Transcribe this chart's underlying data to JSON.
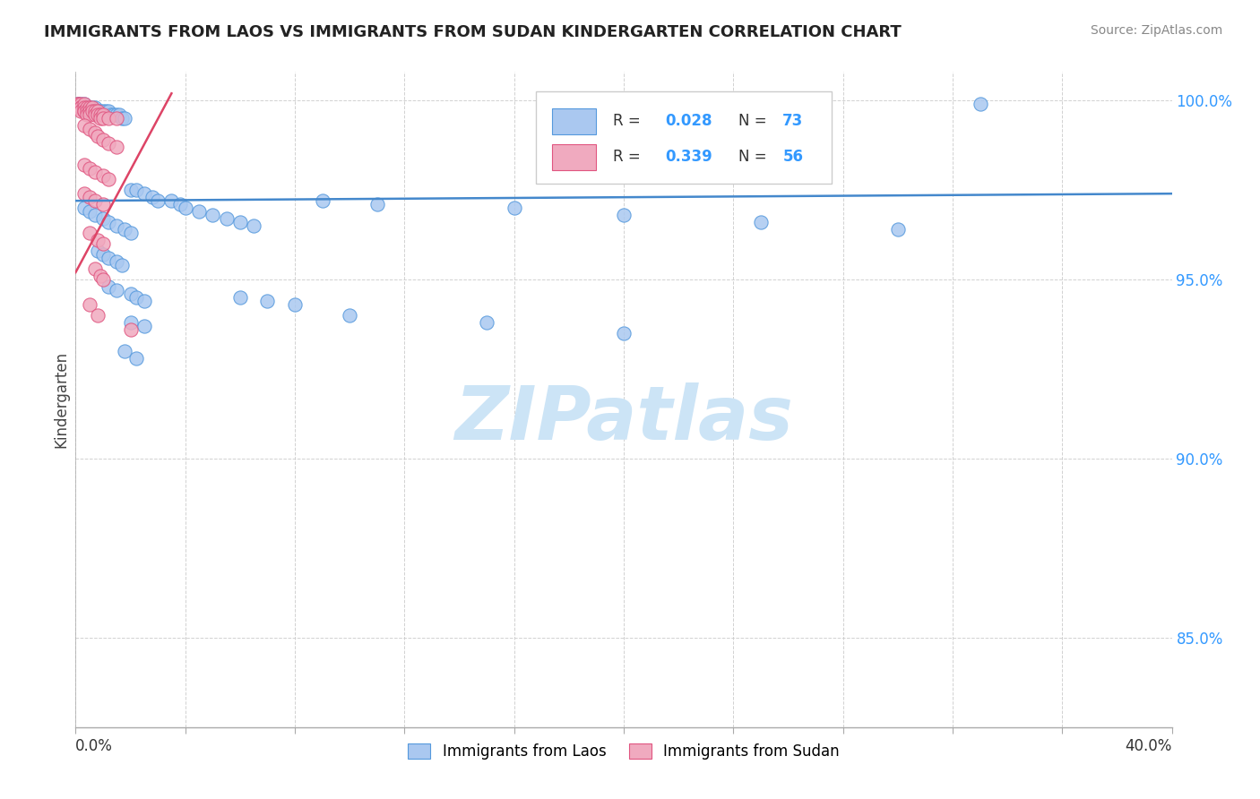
{
  "title": "IMMIGRANTS FROM LAOS VS IMMIGRANTS FROM SUDAN KINDERGARTEN CORRELATION CHART",
  "source": "Source: ZipAtlas.com",
  "ylabel": "Kindergarten",
  "xmin": 0.0,
  "xmax": 0.4,
  "ymin": 0.825,
  "ymax": 1.008,
  "yticks": [
    0.85,
    0.9,
    0.95,
    1.0
  ],
  "ytick_labels": [
    "85.0%",
    "90.0%",
    "95.0%",
    "100.0%"
  ],
  "laos_color": "#aac8f0",
  "sudan_color": "#f0aabf",
  "laos_edge_color": "#5599dd",
  "sudan_edge_color": "#e05580",
  "laos_line_color": "#4488cc",
  "sudan_line_color": "#dd4466",
  "background_color": "#ffffff",
  "grid_color": "#cccccc",
  "tick_color": "#aaaaaa",
  "title_color": "#222222",
  "source_color": "#888888",
  "ylabel_color": "#444444",
  "yticklabel_color": "#3399ff",
  "watermark_color": "#cce4f6",
  "legend_label1": "Immigrants from Laos",
  "legend_label2": "Immigrants from Sudan",
  "laos_points": [
    [
      0.001,
      0.999
    ],
    [
      0.001,
      0.999
    ],
    [
      0.002,
      0.999
    ],
    [
      0.002,
      0.998
    ],
    [
      0.003,
      0.999
    ],
    [
      0.003,
      0.998
    ],
    [
      0.004,
      0.998
    ],
    [
      0.005,
      0.998
    ],
    [
      0.005,
      0.997
    ],
    [
      0.006,
      0.998
    ],
    [
      0.007,
      0.998
    ],
    [
      0.007,
      0.997
    ],
    [
      0.008,
      0.997
    ],
    [
      0.009,
      0.997
    ],
    [
      0.01,
      0.997
    ],
    [
      0.01,
      0.996
    ],
    [
      0.011,
      0.997
    ],
    [
      0.012,
      0.997
    ],
    [
      0.013,
      0.996
    ],
    [
      0.014,
      0.996
    ],
    [
      0.015,
      0.996
    ],
    [
      0.016,
      0.996
    ],
    [
      0.017,
      0.995
    ],
    [
      0.018,
      0.995
    ],
    [
      0.02,
      0.975
    ],
    [
      0.022,
      0.975
    ],
    [
      0.025,
      0.974
    ],
    [
      0.028,
      0.973
    ],
    [
      0.03,
      0.972
    ],
    [
      0.035,
      0.972
    ],
    [
      0.038,
      0.971
    ],
    [
      0.04,
      0.97
    ],
    [
      0.045,
      0.969
    ],
    [
      0.05,
      0.968
    ],
    [
      0.055,
      0.967
    ],
    [
      0.06,
      0.966
    ],
    [
      0.065,
      0.965
    ],
    [
      0.003,
      0.97
    ],
    [
      0.005,
      0.969
    ],
    [
      0.007,
      0.968
    ],
    [
      0.01,
      0.967
    ],
    [
      0.012,
      0.966
    ],
    [
      0.015,
      0.965
    ],
    [
      0.018,
      0.964
    ],
    [
      0.02,
      0.963
    ],
    [
      0.008,
      0.958
    ],
    [
      0.01,
      0.957
    ],
    [
      0.012,
      0.956
    ],
    [
      0.015,
      0.955
    ],
    [
      0.017,
      0.954
    ],
    [
      0.012,
      0.948
    ],
    [
      0.015,
      0.947
    ],
    [
      0.02,
      0.946
    ],
    [
      0.022,
      0.945
    ],
    [
      0.025,
      0.944
    ],
    [
      0.02,
      0.938
    ],
    [
      0.025,
      0.937
    ],
    [
      0.018,
      0.93
    ],
    [
      0.022,
      0.928
    ],
    [
      0.06,
      0.945
    ],
    [
      0.07,
      0.944
    ],
    [
      0.08,
      0.943
    ],
    [
      0.1,
      0.94
    ],
    [
      0.15,
      0.938
    ],
    [
      0.2,
      0.935
    ],
    [
      0.16,
      0.97
    ],
    [
      0.2,
      0.968
    ],
    [
      0.25,
      0.966
    ],
    [
      0.3,
      0.964
    ],
    [
      0.33,
      0.999
    ],
    [
      0.09,
      0.972
    ],
    [
      0.11,
      0.971
    ]
  ],
  "sudan_points": [
    [
      0.001,
      0.999
    ],
    [
      0.001,
      0.999
    ],
    [
      0.001,
      0.998
    ],
    [
      0.001,
      0.998
    ],
    [
      0.002,
      0.999
    ],
    [
      0.002,
      0.998
    ],
    [
      0.002,
      0.998
    ],
    [
      0.002,
      0.997
    ],
    [
      0.003,
      0.999
    ],
    [
      0.003,
      0.998
    ],
    [
      0.003,
      0.997
    ],
    [
      0.003,
      0.997
    ],
    [
      0.004,
      0.998
    ],
    [
      0.004,
      0.997
    ],
    [
      0.004,
      0.996
    ],
    [
      0.005,
      0.998
    ],
    [
      0.005,
      0.997
    ],
    [
      0.005,
      0.996
    ],
    [
      0.006,
      0.998
    ],
    [
      0.006,
      0.997
    ],
    [
      0.007,
      0.997
    ],
    [
      0.007,
      0.996
    ],
    [
      0.008,
      0.997
    ],
    [
      0.008,
      0.996
    ],
    [
      0.009,
      0.996
    ],
    [
      0.009,
      0.995
    ],
    [
      0.01,
      0.996
    ],
    [
      0.01,
      0.995
    ],
    [
      0.012,
      0.995
    ],
    [
      0.015,
      0.995
    ],
    [
      0.003,
      0.993
    ],
    [
      0.005,
      0.992
    ],
    [
      0.007,
      0.991
    ],
    [
      0.008,
      0.99
    ],
    [
      0.01,
      0.989
    ],
    [
      0.012,
      0.988
    ],
    [
      0.015,
      0.987
    ],
    [
      0.003,
      0.982
    ],
    [
      0.005,
      0.981
    ],
    [
      0.007,
      0.98
    ],
    [
      0.01,
      0.979
    ],
    [
      0.012,
      0.978
    ],
    [
      0.003,
      0.974
    ],
    [
      0.005,
      0.973
    ],
    [
      0.007,
      0.972
    ],
    [
      0.01,
      0.971
    ],
    [
      0.005,
      0.963
    ],
    [
      0.008,
      0.961
    ],
    [
      0.01,
      0.96
    ],
    [
      0.007,
      0.953
    ],
    [
      0.009,
      0.951
    ],
    [
      0.01,
      0.95
    ],
    [
      0.005,
      0.943
    ],
    [
      0.008,
      0.94
    ],
    [
      0.02,
      0.936
    ]
  ]
}
